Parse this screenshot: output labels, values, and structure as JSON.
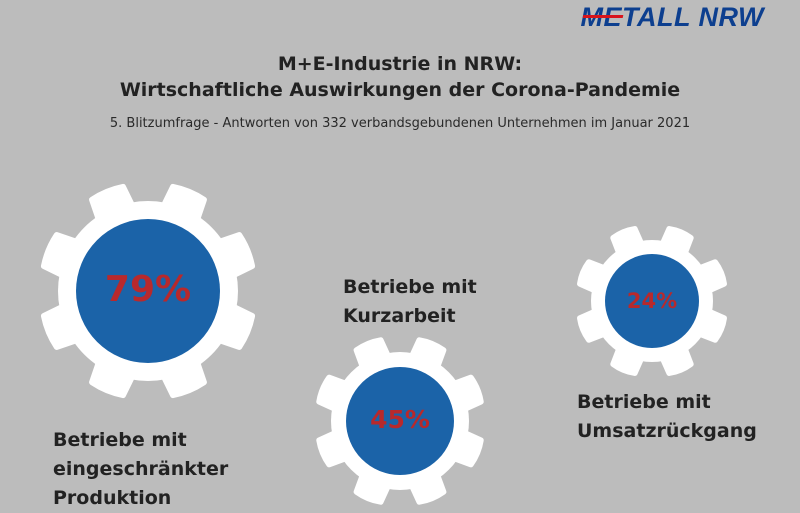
{
  "logo": {
    "me": "ME",
    "rest": "TALL NRW"
  },
  "header": {
    "title_line1": "M+E-Industrie in NRW:",
    "title_line2": "Wirtschaftliche Auswirkungen der Corona-Pandemie",
    "subtitle": "5. Blitzumfrage - Antworten von 332 verbandsgebundenen Unternehmen im Januar 2021"
  },
  "stats": [
    {
      "value": "79%",
      "label_lines": [
        "Betriebe mit",
        "eingeschränkter",
        "Produktion"
      ]
    },
    {
      "value": "45%",
      "label_lines": [
        "Betriebe mit",
        "Kurzarbeit"
      ]
    },
    {
      "value": "24%",
      "label_lines": [
        "Betriebe mit",
        "Umsatzrückgang"
      ]
    }
  ],
  "colors": {
    "background": "#bcbcbc",
    "gear": "#ffffff",
    "circle": "#1b63a8",
    "percent": "#b8292c",
    "logo_blue": "#0d3f8f",
    "logo_red": "#d8141c"
  }
}
